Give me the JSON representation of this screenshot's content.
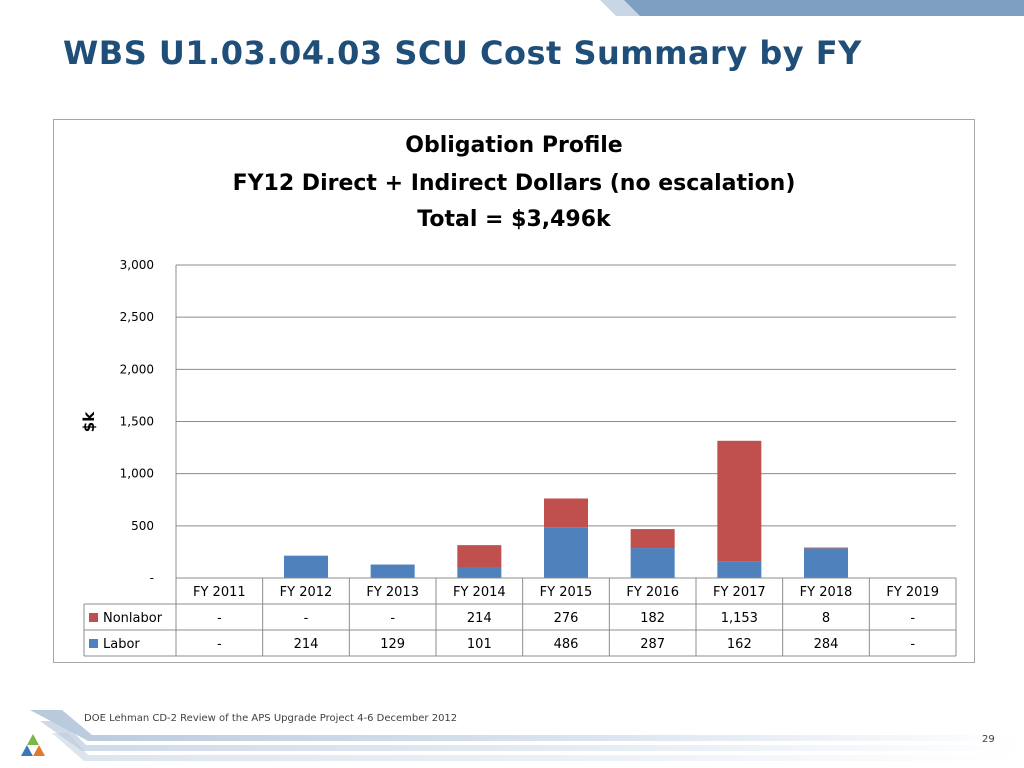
{
  "slide": {
    "title": "WBS U1.03.04.03 SCU Cost Summary by FY",
    "footer": "DOE Lehman CD-2 Review of the APS Upgrade Project    4-6 December  2012",
    "page_number": "29"
  },
  "chart_data": {
    "type": "bar",
    "stacked": true,
    "title": [
      "Obligation Profile",
      "FY12 Direct + Indirect Dollars (no escalation)",
      "Total = $3,496k"
    ],
    "ylabel": "$k",
    "xlabel": "",
    "ylim": [
      0,
      3000
    ],
    "yticks": [
      {
        "value": 0,
        "label": "-"
      },
      {
        "value": 500,
        "label": "500"
      },
      {
        "value": 1000,
        "label": "1,000"
      },
      {
        "value": 1500,
        "label": "1,500"
      },
      {
        "value": 2000,
        "label": "2,000"
      },
      {
        "value": 2500,
        "label": "2,500"
      },
      {
        "value": 3000,
        "label": "3,000"
      }
    ],
    "grid": true,
    "legend": "data-table",
    "categories": [
      "FY 2011",
      "FY 2012",
      "FY 2013",
      "FY 2014",
      "FY 2015",
      "FY 2016",
      "FY 2017",
      "FY 2018",
      "FY 2019"
    ],
    "series": [
      {
        "name": "Labor",
        "color": "#4f81bd",
        "values": [
          0,
          214,
          129,
          101,
          486,
          287,
          162,
          284,
          0
        ],
        "labels": [
          "-",
          "214",
          "129",
          "101",
          "486",
          "287",
          "162",
          "284",
          "-"
        ]
      },
      {
        "name": "Nonlabor",
        "color": "#c0504d",
        "values": [
          0,
          0,
          0,
          214,
          276,
          182,
          1153,
          8,
          0
        ],
        "labels": [
          "-",
          "-",
          "-",
          "214",
          "276",
          "182",
          "1,153",
          "8",
          "-"
        ]
      }
    ],
    "table_order": [
      "Nonlabor",
      "Labor"
    ]
  }
}
